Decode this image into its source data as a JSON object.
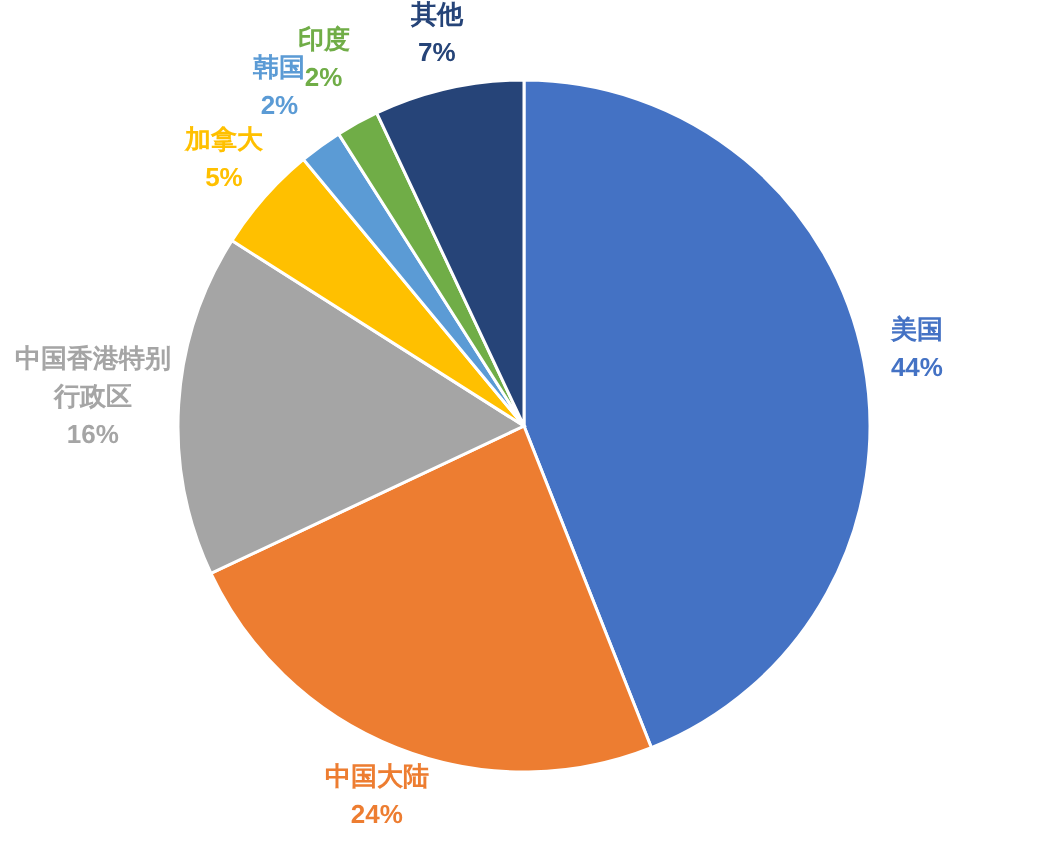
{
  "chart_data": {
    "type": "pie",
    "categories": [
      "美国",
      "中国大陆",
      "中国香港特别行政区",
      "加拿大",
      "韩国",
      "印度",
      "其他"
    ],
    "values": [
      44,
      24,
      16,
      5,
      2,
      2,
      7
    ],
    "value_labels": [
      "44%",
      "24%",
      "16%",
      "5%",
      "2%",
      "2%",
      "7%"
    ],
    "colors": [
      "#4472c4",
      "#ed7d31",
      "#a5a5a5",
      "#ffc000",
      "#5b9bd5",
      "#70ad47",
      "#264478"
    ]
  }
}
